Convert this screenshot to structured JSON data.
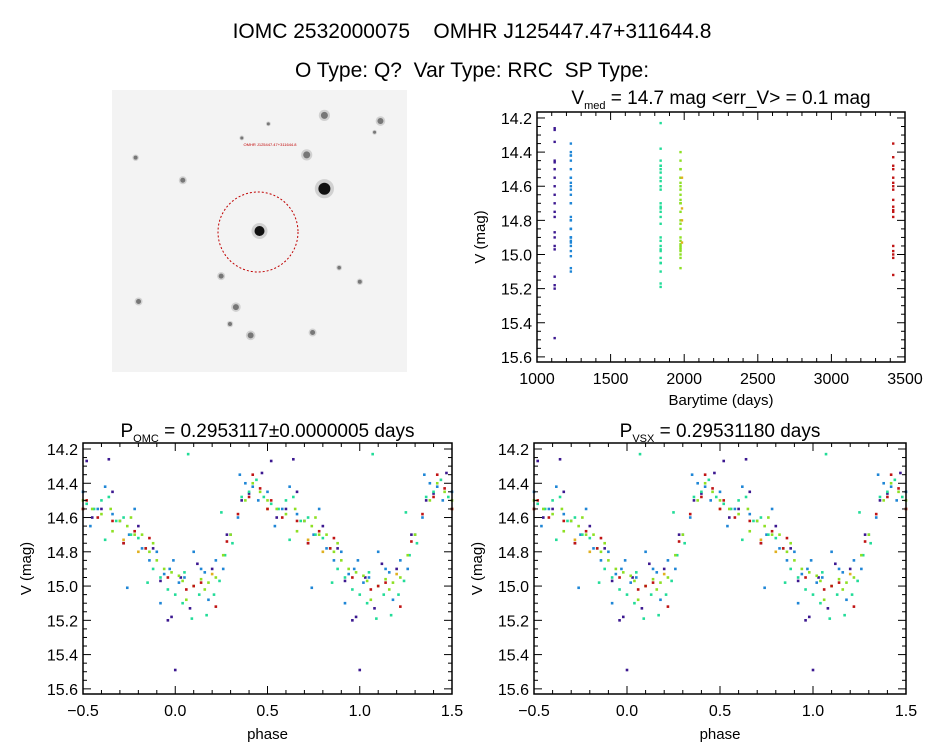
{
  "header": {
    "title": "IOMC 2532000075    OMHR J125447.47+311644.8",
    "subtitle": "O Type: Q?  Var Type: RRC  SP Type:"
  },
  "image_panel": {
    "target_label": "OMHR J125447.47+311644.8",
    "marker_color": "#c00000",
    "stars": [
      [
        0.5,
        0.5,
        5
      ],
      [
        0.72,
        0.35,
        6
      ],
      [
        0.66,
        0.23,
        3.5
      ],
      [
        0.72,
        0.09,
        3.5
      ],
      [
        0.91,
        0.11,
        3
      ],
      [
        0.24,
        0.32,
        2.5
      ],
      [
        0.08,
        0.24,
        2
      ],
      [
        0.37,
        0.66,
        2.5
      ],
      [
        0.42,
        0.77,
        3
      ],
      [
        0.47,
        0.87,
        3
      ],
      [
        0.68,
        0.86,
        2.5
      ],
      [
        0.09,
        0.75,
        2.5
      ],
      [
        0.4,
        0.83,
        2
      ],
      [
        0.84,
        0.68,
        2
      ],
      [
        0.77,
        0.63,
        1.8
      ],
      [
        0.44,
        0.17,
        1.5
      ],
      [
        0.53,
        0.12,
        1.5
      ],
      [
        0.89,
        0.15,
        1.5
      ]
    ]
  },
  "chart_data": [
    {
      "id": "timeseries",
      "type": "scatter",
      "title_main": "V",
      "title_sub": "med",
      "title_rest": " = 14.7 mag <err_V> = 0.1 mag",
      "xlabel": "Barytime (days)",
      "ylabel": "V (mag)",
      "xlim": [
        1000,
        3500
      ],
      "ylim": [
        14.165,
        15.63
      ],
      "y_inverted": true,
      "xticks": [
        1000,
        1500,
        2000,
        2500,
        3000,
        3500
      ],
      "yticks": [
        "14.2",
        "14.4",
        "14.6",
        "14.8",
        "15.0",
        "15.2",
        "15.4",
        "15.6"
      ],
      "grid": false
    },
    {
      "id": "phase_omc",
      "type": "scatter",
      "title_main": "P",
      "title_sub": "OMC",
      "title_rest": " = 0.2953117±0.0000005 days",
      "xlabel": "phase",
      "ylabel": "V (mag)",
      "xlim": [
        -0.5,
        1.5
      ],
      "ylim": [
        14.165,
        15.63
      ],
      "y_inverted": true,
      "xticks": [
        "−0.5",
        "0.0",
        "0.5",
        "1.0",
        "1.5"
      ],
      "yticks": [
        "14.2",
        "14.4",
        "14.6",
        "14.8",
        "15.0",
        "15.2",
        "15.4",
        "15.6"
      ],
      "grid": false
    },
    {
      "id": "phase_vsx",
      "type": "scatter",
      "title_main": "P",
      "title_sub": "VSX",
      "title_rest": " = 0.29531180 days",
      "xlabel": "phase",
      "ylabel": "V (mag)",
      "xlim": [
        -0.5,
        1.5
      ],
      "ylim": [
        14.165,
        15.63
      ],
      "y_inverted": true,
      "xticks": [
        "−0.5",
        "0.0",
        "0.5",
        "1.0",
        "1.5"
      ],
      "yticks": [
        "14.2",
        "14.4",
        "14.6",
        "14.8",
        "15.0",
        "15.2",
        "15.4",
        "15.6"
      ],
      "grid": false
    }
  ],
  "observations": [
    {
      "time": 1120,
      "color": "#3c1890",
      "points": [
        [
          0.03,
          14.95
        ],
        [
          0.47,
          14.34
        ],
        [
          0.52,
          14.27
        ],
        [
          0.64,
          14.26
        ],
        [
          0.36,
          14.5
        ],
        [
          0.88,
          14.78
        ],
        [
          0.96,
          15.2
        ],
        [
          0.98,
          15.18
        ],
        [
          0.0,
          15.49
        ],
        [
          0.12,
          14.87
        ],
        [
          0.2,
          14.9
        ],
        [
          0.55,
          14.6
        ],
        [
          0.72,
          14.75
        ],
        [
          0.66,
          14.45
        ],
        [
          0.4,
          14.46
        ],
        [
          0.08,
          15.13
        ],
        [
          0.92,
          14.97
        ],
        [
          0.28,
          14.7
        ],
        [
          0.8,
          14.65
        ],
        [
          0.6,
          14.55
        ]
      ]
    },
    {
      "time": 1230,
      "color": "#1f86d6",
      "points": [
        [
          0.42,
          14.42
        ],
        [
          0.45,
          14.5
        ],
        [
          0.5,
          14.45
        ],
        [
          0.58,
          14.55
        ],
        [
          0.62,
          14.42
        ],
        [
          0.66,
          14.58
        ],
        [
          0.7,
          14.62
        ],
        [
          0.75,
          14.7
        ],
        [
          0.82,
          14.78
        ],
        [
          0.86,
          14.85
        ],
        [
          0.9,
          14.8
        ],
        [
          0.94,
          14.93
        ],
        [
          0.97,
          14.9
        ],
        [
          0.99,
          14.85
        ],
        [
          0.05,
          14.95
        ],
        [
          0.1,
          14.8
        ],
        [
          0.14,
          14.9
        ],
        [
          0.18,
          15.08
        ],
        [
          0.22,
          14.85
        ],
        [
          0.26,
          14.9
        ],
        [
          0.3,
          14.7
        ],
        [
          0.34,
          14.6
        ],
        [
          0.38,
          14.4
        ],
        [
          0.74,
          15.01
        ],
        [
          0.02,
          14.98
        ],
        [
          0.16,
          14.92
        ],
        [
          0.54,
          14.65
        ],
        [
          0.78,
          14.55
        ],
        [
          0.92,
          15.1
        ],
        [
          0.35,
          14.35
        ]
      ]
    },
    {
      "time": 1840,
      "color": "#22dc98",
      "points": [
        [
          0.07,
          14.23
        ],
        [
          0.4,
          14.45
        ],
        [
          0.44,
          14.38
        ],
        [
          0.48,
          14.48
        ],
        [
          0.52,
          14.52
        ],
        [
          0.56,
          14.55
        ],
        [
          0.6,
          14.5
        ],
        [
          0.64,
          14.48
        ],
        [
          0.68,
          14.62
        ],
        [
          0.72,
          14.6
        ],
        [
          0.76,
          14.7
        ],
        [
          0.8,
          14.72
        ],
        [
          0.84,
          14.78
        ],
        [
          0.88,
          14.9
        ],
        [
          0.92,
          14.95
        ],
        [
          0.96,
          15.02
        ],
        [
          0.0,
          15.05
        ],
        [
          0.04,
          15.1
        ],
        [
          0.09,
          15.19
        ],
        [
          0.13,
          15.05
        ],
        [
          0.17,
          15.17
        ],
        [
          0.21,
          15.05
        ],
        [
          0.24,
          14.97
        ],
        [
          0.27,
          14.82
        ],
        [
          0.31,
          14.75
        ],
        [
          0.25,
          14.57
        ],
        [
          0.62,
          14.73
        ],
        [
          0.85,
          14.98
        ],
        [
          0.05,
          14.92
        ],
        [
          0.36,
          14.48
        ]
      ]
    },
    {
      "time": 1975,
      "color": "#8ee024",
      "points": [
        [
          0.38,
          14.5
        ],
        [
          0.42,
          14.4
        ],
        [
          0.46,
          14.45
        ],
        [
          0.5,
          14.5
        ],
        [
          0.55,
          14.55
        ],
        [
          0.6,
          14.58
        ],
        [
          0.65,
          14.55
        ],
        [
          0.7,
          14.62
        ],
        [
          0.74,
          14.65
        ],
        [
          0.78,
          14.7
        ],
        [
          0.82,
          14.7
        ],
        [
          0.86,
          14.8
        ],
        [
          0.9,
          14.85
        ],
        [
          0.94,
          14.9
        ],
        [
          0.98,
          14.92
        ],
        [
          0.02,
          14.94
        ],
        [
          0.06,
          15.08
        ],
        [
          0.1,
          15.0
        ],
        [
          0.14,
          14.96
        ],
        [
          0.18,
          14.98
        ],
        [
          0.22,
          14.95
        ],
        [
          0.26,
          14.82
        ],
        [
          0.3,
          14.7
        ],
        [
          0.66,
          14.68
        ],
        [
          0.76,
          14.6
        ],
        [
          0.88,
          14.75
        ],
        [
          0.04,
          14.97
        ],
        [
          0.16,
          15.02
        ]
      ]
    },
    {
      "time": 1985,
      "color": "#e0b020",
      "points": [
        [
          0.8,
          14.8
        ],
        [
          0.2,
          14.93
        ],
        [
          0.5,
          14.55
        ],
        [
          0.72,
          14.73
        ]
      ]
    },
    {
      "time": 3420,
      "color": "#c01414",
      "points": [
        [
          0.4,
          14.48
        ],
        [
          0.42,
          14.35
        ],
        [
          0.46,
          14.43
        ],
        [
          0.5,
          14.55
        ],
        [
          0.58,
          14.6
        ],
        [
          0.66,
          14.62
        ],
        [
          0.72,
          14.75
        ],
        [
          0.78,
          14.68
        ],
        [
          0.84,
          14.78
        ],
        [
          0.96,
          14.95
        ],
        [
          0.06,
          15.02
        ],
        [
          0.1,
          15.0
        ],
        [
          0.14,
          14.98
        ],
        [
          0.22,
          15.12
        ],
        [
          0.28,
          14.74
        ],
        [
          0.34,
          14.58
        ],
        [
          0.52,
          14.5
        ],
        [
          0.86,
          14.72
        ]
      ]
    }
  ]
}
